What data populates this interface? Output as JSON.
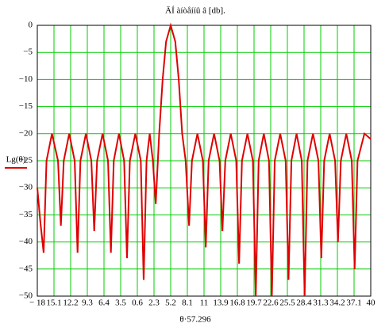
{
  "chart_data": {
    "type": "line",
    "title": "ÄÍ àíòåííû â [db].",
    "x_label": "θ·57.296",
    "series": [
      {
        "name": "Lg(θ)",
        "color": "#e00000",
        "x": [
          -18,
          -17.5,
          -16.9,
          -16.4,
          -15.45,
          -14.4,
          -13.9,
          -13.4,
          -12.45,
          -11.5,
          -11.0,
          -10.5,
          -9.55,
          -8.6,
          -8.1,
          -7.6,
          -6.65,
          -5.7,
          -5.2,
          -4.7,
          -3.8,
          -2.9,
          -2.4,
          -1.9,
          -0.95,
          0.0,
          0.5,
          1.0,
          1.55,
          2.1,
          2.6,
          3.2,
          3.8,
          4.4,
          5.2,
          6.0,
          6.6,
          7.2,
          7.8,
          8.4,
          8.9,
          9.85,
          10.8,
          11.3,
          11.8,
          12.75,
          13.7,
          14.2,
          14.7,
          15.65,
          16.6,
          17.1,
          17.6,
          18.55,
          19.5,
          20.0,
          20.5,
          21.4,
          22.3,
          22.8,
          23.3,
          24.25,
          25.2,
          25.7,
          26.2,
          27.1,
          28.0,
          28.5,
          29.0,
          29.95,
          30.9,
          31.4,
          31.9,
          32.85,
          33.8,
          34.3,
          34.8,
          35.75,
          36.7,
          37.2,
          37.7,
          38.9,
          40
        ],
        "values": [
          -30,
          -36,
          -42,
          -25,
          -20,
          -25,
          -37,
          -25,
          -20,
          -25,
          -42,
          -25,
          -20,
          -25,
          -38,
          -25,
          -20,
          -25,
          -42,
          -25,
          -20,
          -25,
          -43,
          -25,
          -20,
          -25,
          -47,
          -25,
          -20,
          -25,
          -33,
          -20,
          -10,
          -3,
          0,
          -3,
          -10,
          -20,
          -25,
          -37,
          -25,
          -20,
          -25,
          -41,
          -25,
          -20,
          -25,
          -38,
          -25,
          -20,
          -25,
          -44,
          -25,
          -20,
          -25,
          -50,
          -25,
          -20,
          -25,
          -50,
          -25,
          -20,
          -25,
          -47,
          -25,
          -20,
          -25,
          -50,
          -25,
          -20,
          -25,
          -43,
          -25,
          -20,
          -25,
          -40,
          -25,
          -20,
          -25,
          -45,
          -25,
          -20,
          -21
        ]
      }
    ],
    "xlim": [
      -18,
      40
    ],
    "xticks": [
      {
        "value": -18,
        "label": "− 18"
      },
      {
        "value": -15.1,
        "label": "15.1"
      },
      {
        "value": -12.2,
        "label": "12.2"
      },
      {
        "value": -9.3,
        "label": "9.3"
      },
      {
        "value": -6.4,
        "label": "6.4"
      },
      {
        "value": -3.5,
        "label": "3.5"
      },
      {
        "value": -0.6,
        "label": "0.6"
      },
      2.3,
      5.2,
      8.1,
      11,
      13.9,
      16.8,
      19.7,
      22.6,
      25.5,
      28.4,
      31.3,
      34.2,
      37.1,
      40
    ],
    "ylim": [
      -50,
      0
    ],
    "yticks": [
      0,
      {
        "value": -5,
        "label": "−5"
      },
      {
        "value": -10,
        "label": "−10"
      },
      {
        "value": -15,
        "label": "−15"
      },
      {
        "value": -20,
        "label": "−20"
      },
      {
        "value": -25,
        "label": "−25"
      },
      {
        "value": -30,
        "label": "−30"
      },
      {
        "value": -35,
        "label": "−35"
      },
      {
        "value": -40,
        "label": "−40"
      },
      {
        "value": -45,
        "label": "−45"
      },
      {
        "value": -50,
        "label": "−50"
      }
    ],
    "grid": true,
    "grid_color": "#00cc00"
  }
}
